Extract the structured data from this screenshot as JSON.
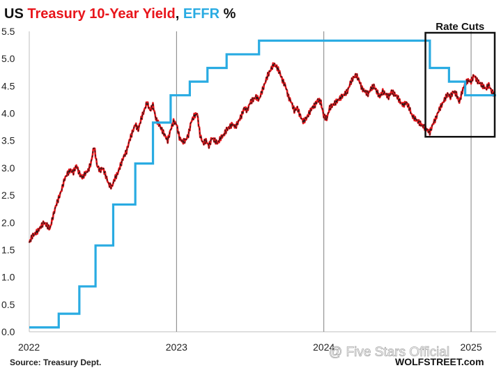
{
  "chart_data": {
    "type": "line",
    "title_parts": [
      {
        "text": "US ",
        "color": "#111111"
      },
      {
        "text": "Treasury 10-Year Yield",
        "color": "#e8151b"
      },
      {
        "text": ", ",
        "color": "#111111"
      },
      {
        "text": "EFFR",
        "color": "#29abe2"
      },
      {
        "text": " %",
        "color": "#111111"
      }
    ],
    "ylim": [
      0,
      5.5
    ],
    "xlim": [
      2022.0,
      2025.17
    ],
    "y_ticks": [
      "0.0",
      "0.5",
      "1.0",
      "1.5",
      "2.0",
      "2.5",
      "3.0",
      "3.5",
      "4.0",
      "4.5",
      "5.0",
      "5.5"
    ],
    "x_ticks": [
      {
        "value": 2022,
        "label": "2022"
      },
      {
        "value": 2023,
        "label": "2023"
      },
      {
        "value": 2024,
        "label": "2024"
      },
      {
        "value": 2025,
        "label": "2025"
      }
    ],
    "series": [
      {
        "name": "Treasury 10-Year Yield",
        "color": "#e8151b",
        "points": [
          [
            2022.0,
            1.63
          ],
          [
            2022.02,
            1.75
          ],
          [
            2022.04,
            1.8
          ],
          [
            2022.06,
            1.85
          ],
          [
            2022.08,
            1.93
          ],
          [
            2022.1,
            2.0
          ],
          [
            2022.12,
            1.95
          ],
          [
            2022.14,
            1.88
          ],
          [
            2022.16,
            2.1
          ],
          [
            2022.18,
            2.3
          ],
          [
            2022.2,
            2.45
          ],
          [
            2022.22,
            2.6
          ],
          [
            2022.24,
            2.8
          ],
          [
            2022.26,
            2.9
          ],
          [
            2022.28,
            2.96
          ],
          [
            2022.3,
            2.92
          ],
          [
            2022.32,
            3.05
          ],
          [
            2022.34,
            2.9
          ],
          [
            2022.36,
            2.82
          ],
          [
            2022.38,
            2.9
          ],
          [
            2022.4,
            2.95
          ],
          [
            2022.42,
            3.1
          ],
          [
            2022.44,
            3.4
          ],
          [
            2022.46,
            3.05
          ],
          [
            2022.48,
            2.95
          ],
          [
            2022.5,
            3.0
          ],
          [
            2022.52,
            2.85
          ],
          [
            2022.54,
            2.7
          ],
          [
            2022.56,
            2.65
          ],
          [
            2022.58,
            2.8
          ],
          [
            2022.6,
            2.9
          ],
          [
            2022.62,
            3.05
          ],
          [
            2022.64,
            3.2
          ],
          [
            2022.66,
            3.3
          ],
          [
            2022.68,
            3.5
          ],
          [
            2022.7,
            3.65
          ],
          [
            2022.72,
            3.8
          ],
          [
            2022.74,
            3.7
          ],
          [
            2022.76,
            3.9
          ],
          [
            2022.78,
            4.05
          ],
          [
            2022.8,
            4.2
          ],
          [
            2022.82,
            4.05
          ],
          [
            2022.84,
            4.15
          ],
          [
            2022.86,
            3.9
          ],
          [
            2022.88,
            3.8
          ],
          [
            2022.9,
            3.7
          ],
          [
            2022.92,
            3.6
          ],
          [
            2022.94,
            3.5
          ],
          [
            2022.96,
            3.7
          ],
          [
            2022.98,
            3.85
          ],
          [
            2023.0,
            3.8
          ],
          [
            2023.02,
            3.55
          ],
          [
            2023.04,
            3.48
          ],
          [
            2023.06,
            3.5
          ],
          [
            2023.08,
            3.6
          ],
          [
            2023.1,
            3.85
          ],
          [
            2023.12,
            3.95
          ],
          [
            2023.14,
            4.0
          ],
          [
            2023.16,
            3.6
          ],
          [
            2023.18,
            3.45
          ],
          [
            2023.2,
            3.5
          ],
          [
            2023.22,
            3.4
          ],
          [
            2023.24,
            3.55
          ],
          [
            2023.26,
            3.5
          ],
          [
            2023.28,
            3.45
          ],
          [
            2023.3,
            3.55
          ],
          [
            2023.32,
            3.6
          ],
          [
            2023.34,
            3.7
          ],
          [
            2023.36,
            3.75
          ],
          [
            2023.38,
            3.8
          ],
          [
            2023.4,
            3.75
          ],
          [
            2023.42,
            3.85
          ],
          [
            2023.44,
            3.95
          ],
          [
            2023.46,
            4.1
          ],
          [
            2023.48,
            4.05
          ],
          [
            2023.5,
            4.2
          ],
          [
            2023.52,
            4.25
          ],
          [
            2023.54,
            4.3
          ],
          [
            2023.56,
            4.25
          ],
          [
            2023.58,
            4.4
          ],
          [
            2023.6,
            4.55
          ],
          [
            2023.62,
            4.7
          ],
          [
            2023.64,
            4.8
          ],
          [
            2023.66,
            4.9
          ],
          [
            2023.68,
            4.85
          ],
          [
            2023.7,
            4.75
          ],
          [
            2023.72,
            4.6
          ],
          [
            2023.74,
            4.5
          ],
          [
            2023.76,
            4.3
          ],
          [
            2023.78,
            4.2
          ],
          [
            2023.8,
            4.05
          ],
          [
            2023.82,
            4.1
          ],
          [
            2023.84,
            3.95
          ],
          [
            2023.86,
            3.85
          ],
          [
            2023.88,
            3.9
          ],
          [
            2023.9,
            4.0
          ],
          [
            2023.92,
            4.1
          ],
          [
            2023.94,
            4.15
          ],
          [
            2023.96,
            4.25
          ],
          [
            2023.98,
            4.2
          ],
          [
            2024.0,
            3.95
          ],
          [
            2024.02,
            3.9
          ],
          [
            2024.04,
            4.1
          ],
          [
            2024.06,
            4.15
          ],
          [
            2024.08,
            4.2
          ],
          [
            2024.1,
            4.25
          ],
          [
            2024.12,
            4.3
          ],
          [
            2024.14,
            4.35
          ],
          [
            2024.16,
            4.4
          ],
          [
            2024.18,
            4.55
          ],
          [
            2024.2,
            4.65
          ],
          [
            2024.22,
            4.7
          ],
          [
            2024.24,
            4.6
          ],
          [
            2024.26,
            4.45
          ],
          [
            2024.28,
            4.4
          ],
          [
            2024.3,
            4.35
          ],
          [
            2024.32,
            4.45
          ],
          [
            2024.34,
            4.5
          ],
          [
            2024.36,
            4.4
          ],
          [
            2024.38,
            4.3
          ],
          [
            2024.4,
            4.4
          ],
          [
            2024.42,
            4.35
          ],
          [
            2024.44,
            4.3
          ],
          [
            2024.46,
            4.4
          ],
          [
            2024.48,
            4.35
          ],
          [
            2024.5,
            4.3
          ],
          [
            2024.52,
            4.2
          ],
          [
            2024.54,
            4.15
          ],
          [
            2024.56,
            4.2
          ],
          [
            2024.58,
            4.1
          ],
          [
            2024.6,
            3.95
          ],
          [
            2024.62,
            3.9
          ],
          [
            2024.64,
            3.85
          ],
          [
            2024.66,
            3.8
          ],
          [
            2024.68,
            3.75
          ],
          [
            2024.7,
            3.7
          ],
          [
            2024.72,
            3.65
          ],
          [
            2024.74,
            3.8
          ],
          [
            2024.76,
            3.9
          ],
          [
            2024.78,
            4.05
          ],
          [
            2024.8,
            4.15
          ],
          [
            2024.82,
            4.25
          ],
          [
            2024.84,
            4.35
          ],
          [
            2024.86,
            4.3
          ],
          [
            2024.88,
            4.4
          ],
          [
            2024.9,
            4.35
          ],
          [
            2024.92,
            4.2
          ],
          [
            2024.94,
            4.4
          ],
          [
            2024.96,
            4.55
          ],
          [
            2024.98,
            4.6
          ],
          [
            2025.0,
            4.58
          ],
          [
            2025.02,
            4.7
          ],
          [
            2025.04,
            4.6
          ],
          [
            2025.06,
            4.55
          ],
          [
            2025.08,
            4.5
          ],
          [
            2025.1,
            4.45
          ],
          [
            2025.12,
            4.52
          ],
          [
            2025.14,
            4.4
          ],
          [
            2025.16,
            4.33
          ]
        ]
      },
      {
        "name": "EFFR",
        "color": "#29abe2",
        "steps": [
          [
            2022.0,
            0.08
          ],
          [
            2022.2,
            0.33
          ],
          [
            2022.34,
            0.83
          ],
          [
            2022.45,
            1.58
          ],
          [
            2022.57,
            2.33
          ],
          [
            2022.72,
            3.08
          ],
          [
            2022.84,
            3.83
          ],
          [
            2022.96,
            4.33
          ],
          [
            2023.09,
            4.58
          ],
          [
            2023.21,
            4.83
          ],
          [
            2023.34,
            5.08
          ],
          [
            2023.56,
            5.33
          ],
          [
            2024.72,
            4.83
          ],
          [
            2024.85,
            4.58
          ],
          [
            2024.96,
            4.33
          ],
          [
            2025.17,
            4.33
          ]
        ]
      }
    ],
    "annotations": [
      {
        "text": "Rate Cuts",
        "x_range": [
          2024.69,
          2025.17
        ],
        "y_range": [
          3.57,
          5.5
        ]
      }
    ]
  },
  "footer": {
    "source": "Source: Treasury Dept.",
    "brand": "WOLFSTREET.com"
  },
  "watermark": "@ Five Stars Official"
}
